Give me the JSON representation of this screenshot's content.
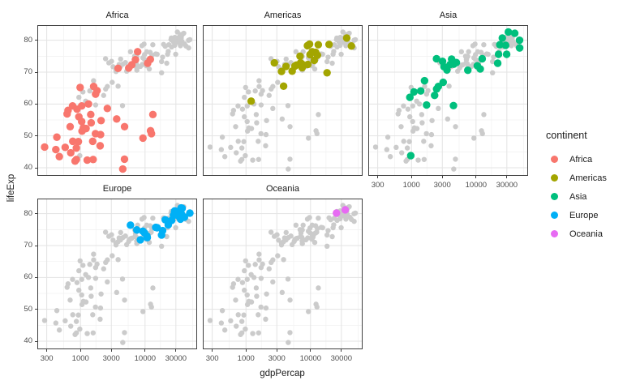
{
  "chart_data": {
    "type": "scatter",
    "xlabel": "gdpPercap",
    "ylabel": "lifeExp",
    "x_scale": "log10",
    "x_ticks": [
      "300",
      "1000",
      "3000",
      "10000",
      "30000"
    ],
    "x_tick_values": [
      300,
      1000,
      3000,
      10000,
      30000
    ],
    "y_ticks": [
      "40",
      "50",
      "60",
      "70",
      "80"
    ],
    "y_tick_values": [
      40,
      50,
      60,
      70,
      80
    ],
    "x_range_log10": [
      2.331,
      4.806
    ],
    "y_range": [
      37.46,
      84.75
    ],
    "grid": "on",
    "facets": [
      "Africa",
      "Americas",
      "Asia",
      "Europe",
      "Oceania"
    ],
    "legend": {
      "title": "continent",
      "position": "right"
    },
    "colors": {
      "other_points": "#CBCBCB",
      "grid_major": "#E3E3E3",
      "grid_minor": "#F1F1F1",
      "panel_border": "#404040",
      "panel_background": "#FFFFFF",
      "tick_text": "#4D4D4D",
      "title_text": "#1A1A1A"
    },
    "series": [
      {
        "name": "Africa",
        "color": "#F8766D",
        "points": [
          [
            6223,
            72.3
          ],
          [
            4797,
            42.7
          ],
          [
            1441,
            56.7
          ],
          [
            12570,
            50.7
          ],
          [
            1217,
            52.3
          ],
          [
            430,
            49.6
          ],
          [
            2042,
            50.4
          ],
          [
            706,
            44.7
          ],
          [
            1704,
            50.7
          ],
          [
            986,
            65.2
          ],
          [
            278,
            46.5
          ],
          [
            3633,
            55.3
          ],
          [
            1545,
            48.3
          ],
          [
            2082,
            54.8
          ],
          [
            5581,
            71.3
          ],
          [
            12154,
            51.6
          ],
          [
            641,
            58.0
          ],
          [
            691,
            52.9
          ],
          [
            13206,
            56.7
          ],
          [
            753,
            59.4
          ],
          [
            1328,
            60.0
          ],
          [
            943,
            56.0
          ],
          [
            579,
            46.4
          ],
          [
            1463,
            54.1
          ],
          [
            1569,
            42.6
          ],
          [
            415,
            45.7
          ],
          [
            12057,
            74.0
          ],
          [
            1045,
            59.4
          ],
          [
            759,
            48.3
          ],
          [
            1043,
            54.5
          ],
          [
            1803,
            64.2
          ],
          [
            10957,
            72.8
          ],
          [
            3820,
            71.2
          ],
          [
            824,
            42.1
          ],
          [
            4811,
            52.9
          ],
          [
            620,
            56.9
          ],
          [
            2014,
            46.9
          ],
          [
            7670,
            76.4
          ],
          [
            863,
            46.2
          ],
          [
            1598,
            65.5
          ],
          [
            1712,
            63.1
          ],
          [
            863,
            42.6
          ],
          [
            926,
            48.2
          ],
          [
            9270,
            49.3
          ],
          [
            2602,
            58.6
          ],
          [
            4513,
            39.6
          ],
          [
            1107,
            52.5
          ],
          [
            883,
            58.4
          ],
          [
            7093,
            73.9
          ],
          [
            1056,
            51.5
          ],
          [
            1271,
            42.4
          ],
          [
            470,
            43.5
          ]
        ]
      },
      {
        "name": "Americas",
        "color": "#A3A500",
        "points": [
          [
            12779,
            75.3
          ],
          [
            3822,
            65.6
          ],
          [
            9066,
            72.4
          ],
          [
            36319,
            80.7
          ],
          [
            13172,
            78.6
          ],
          [
            7007,
            72.9
          ],
          [
            9645,
            78.8
          ],
          [
            8948,
            78.3
          ],
          [
            6025,
            72.2
          ],
          [
            6873,
            75.0
          ],
          [
            5728,
            71.9
          ],
          [
            5186,
            70.3
          ],
          [
            1202,
            60.9
          ],
          [
            3548,
            70.2
          ],
          [
            7321,
            72.6
          ],
          [
            11978,
            76.2
          ],
          [
            2749,
            72.9
          ],
          [
            9809,
            75.5
          ],
          [
            4173,
            71.8
          ],
          [
            7409,
            71.4
          ],
          [
            19329,
            78.7
          ],
          [
            18009,
            69.8
          ],
          [
            42952,
            78.2
          ],
          [
            10611,
            76.4
          ],
          [
            11416,
            73.7
          ]
        ]
      },
      {
        "name": "Asia",
        "color": "#00BF7D",
        "points": [
          [
            975,
            43.8
          ],
          [
            29796,
            75.6
          ],
          [
            1391,
            64.1
          ],
          [
            1714,
            59.7
          ],
          [
            4959,
            73.0
          ],
          [
            39725,
            82.2
          ],
          [
            2452,
            64.7
          ],
          [
            3541,
            70.7
          ],
          [
            11606,
            71.0
          ],
          [
            4471,
            59.5
          ],
          [
            25523,
            80.7
          ],
          [
            31656,
            82.6
          ],
          [
            4519,
            72.5
          ],
          [
            1593,
            67.3
          ],
          [
            23348,
            78.6
          ],
          [
            47307,
            77.6
          ],
          [
            10461,
            72.0
          ],
          [
            12452,
            74.2
          ],
          [
            3096,
            66.8
          ],
          [
            944,
            62.1
          ],
          [
            1091,
            63.8
          ],
          [
            22316,
            75.6
          ],
          [
            2606,
            65.5
          ],
          [
            3190,
            71.7
          ],
          [
            21655,
            72.8
          ],
          [
            47143,
            80.0
          ],
          [
            3970,
            72.4
          ],
          [
            4185,
            74.1
          ],
          [
            28718,
            78.4
          ],
          [
            7458,
            70.6
          ],
          [
            2442,
            74.2
          ],
          [
            3025,
            73.4
          ],
          [
            2281,
            62.7
          ]
        ]
      },
      {
        "name": "Europe",
        "color": "#00B0F6",
        "points": [
          [
            5937,
            76.4
          ],
          [
            36126,
            79.8
          ],
          [
            33693,
            79.4
          ],
          [
            7446,
            74.9
          ],
          [
            10681,
            73.0
          ],
          [
            14619,
            75.7
          ],
          [
            22833,
            76.5
          ],
          [
            35278,
            78.3
          ],
          [
            33207,
            79.3
          ],
          [
            30470,
            80.7
          ],
          [
            32170,
            79.4
          ],
          [
            27538,
            79.5
          ],
          [
            18009,
            73.3
          ],
          [
            36181,
            81.8
          ],
          [
            40676,
            78.9
          ],
          [
            28570,
            80.5
          ],
          [
            9254,
            74.5
          ],
          [
            36798,
            79.8
          ],
          [
            49357,
            80.2
          ],
          [
            15390,
            75.6
          ],
          [
            20510,
            78.1
          ],
          [
            10808,
            72.5
          ],
          [
            9787,
            74.0
          ],
          [
            18678,
            74.7
          ],
          [
            25768,
            77.9
          ],
          [
            28821,
            80.9
          ],
          [
            33860,
            80.9
          ],
          [
            37506,
            81.7
          ],
          [
            8458,
            71.8
          ],
          [
            33203,
            79.4
          ]
        ]
      },
      {
        "name": "Oceania",
        "color": "#E76BF3",
        "points": [
          [
            34435,
            81.2
          ],
          [
            25185,
            80.2
          ]
        ]
      }
    ]
  }
}
